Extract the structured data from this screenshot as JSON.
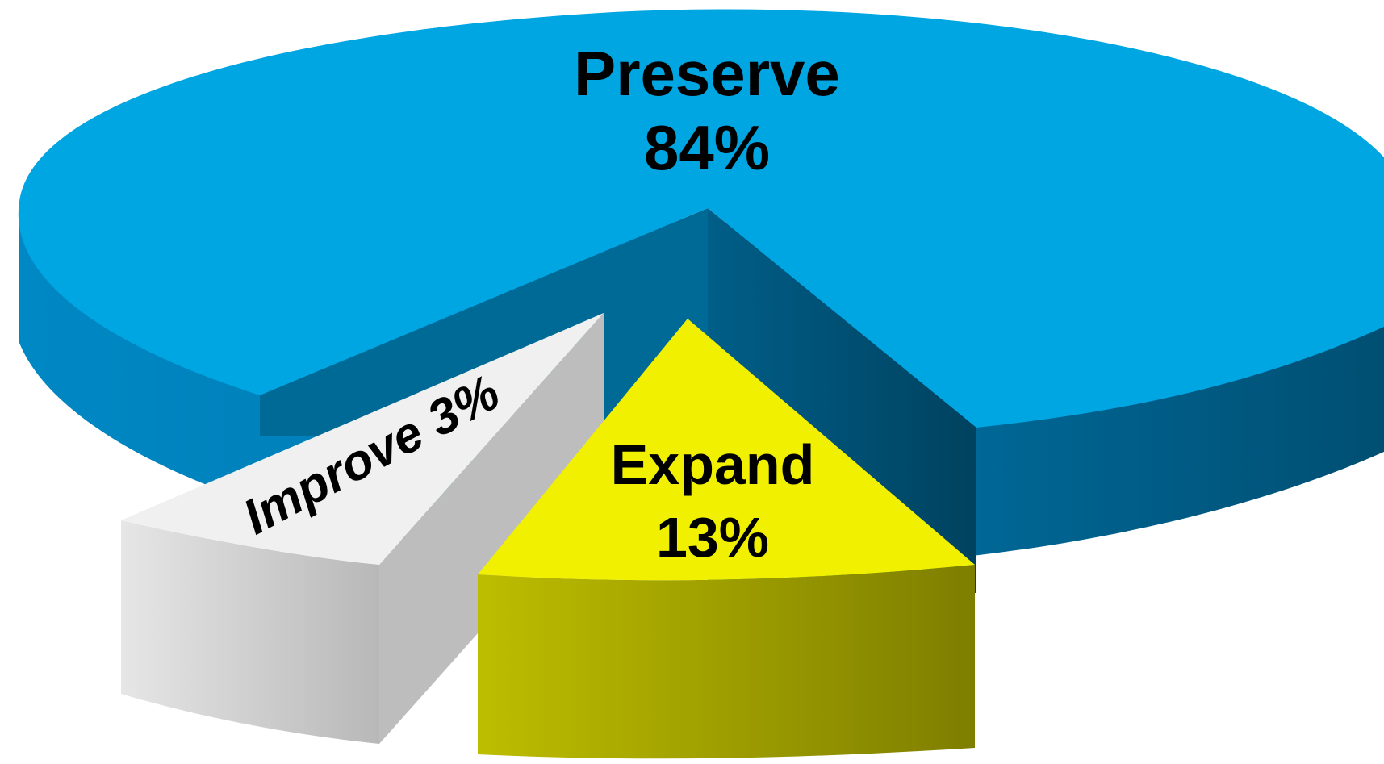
{
  "chart_data": {
    "type": "pie",
    "title": "",
    "style": "3d-exploded",
    "slices": [
      {
        "label": "Preserve",
        "value": 84,
        "value_label": "84%",
        "color": "#00A6E2",
        "side_color": "#006E9C",
        "exploded": false
      },
      {
        "label": "Improve",
        "value": 3,
        "value_label": "3%",
        "color": "#F0F0F0",
        "side_color": "#C4C4C4",
        "exploded": true
      },
      {
        "label": "Expand",
        "value": 13,
        "value_label": "13%",
        "color": "#F0F000",
        "side_color": "#A0A000",
        "exploded": true
      }
    ],
    "legend": "none"
  }
}
